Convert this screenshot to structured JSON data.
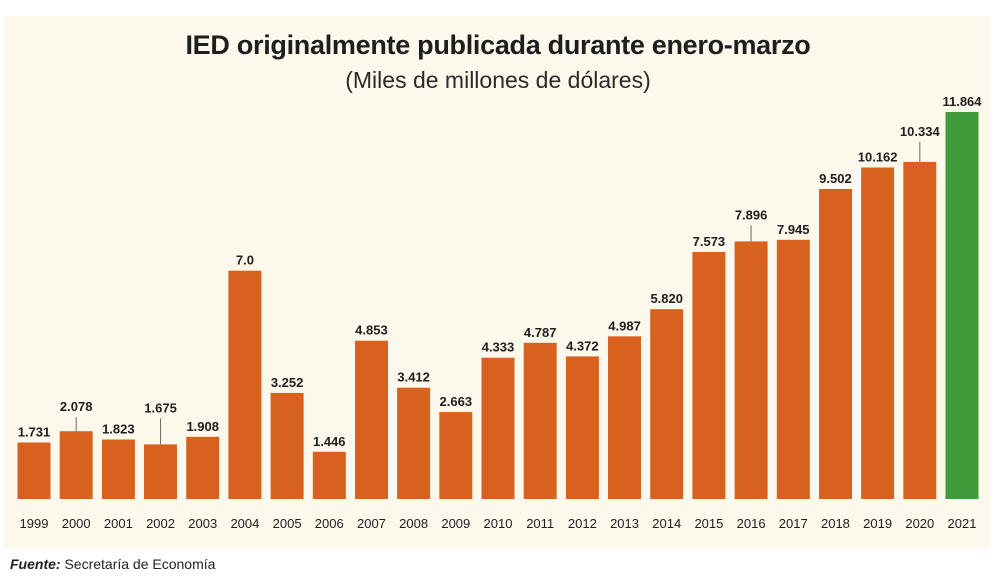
{
  "chart_data": {
    "type": "bar",
    "title": "IED originalmente publicada durante enero-marzo",
    "subtitle": "(Miles de millones de dólares)",
    "categories": [
      "1999",
      "2000",
      "2001",
      "2002",
      "2003",
      "2004",
      "2005",
      "2006",
      "2007",
      "2008",
      "2009",
      "2010",
      "2011",
      "2012",
      "2013",
      "2014",
      "2015",
      "2016",
      "2017",
      "2018",
      "2019",
      "2020",
      "2021"
    ],
    "values": [
      1.731,
      2.078,
      1.823,
      1.675,
      1.908,
      7.0,
      3.252,
      1.446,
      4.853,
      3.412,
      2.663,
      4.333,
      4.787,
      4.372,
      4.987,
      5.82,
      7.573,
      7.896,
      7.945,
      9.502,
      10.162,
      10.334,
      11.864
    ],
    "value_labels": [
      "1.731",
      "2.078",
      "1.823",
      "1.675",
      "1.908",
      "7.0",
      "3.252",
      "1.446",
      "4.853",
      "3.412",
      "2.663",
      "4.333",
      "4.787",
      "4.372",
      "4.987",
      "5.820",
      "7.573",
      "7.896",
      "7.945",
      "9.502",
      "10.162",
      "10.334",
      "11.864"
    ],
    "highlight_index": 22,
    "ylim": [
      0,
      11.864
    ],
    "xlabel": "",
    "ylabel": "",
    "grid": false,
    "colors": {
      "bar": "#d8611f",
      "highlight": "#3f9a3a",
      "background": "#fdf8ec"
    }
  },
  "source": {
    "label": "Fuente:",
    "text": "Secretaría de Economía"
  }
}
